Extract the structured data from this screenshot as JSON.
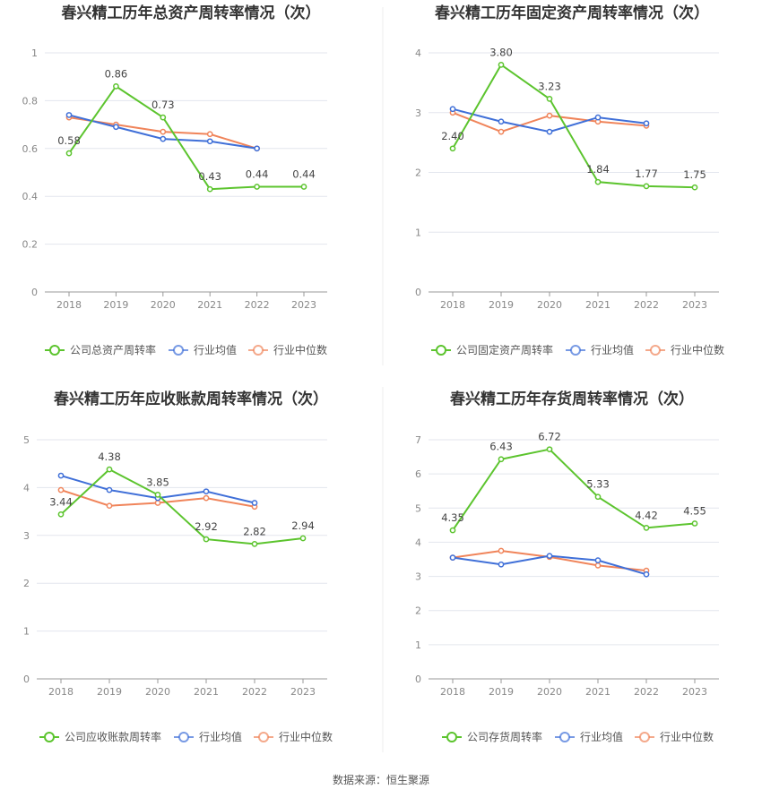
{
  "colors": {
    "company": "#5cc42e",
    "industry_avg": "#3f6fd8",
    "industry_median": "#f0845a",
    "grid": "#e3e6ee",
    "axis": "#999999"
  },
  "legend_labels": {
    "industry_avg": "行业均值",
    "industry_median": "行业中位数"
  },
  "source": "数据来源：恒生聚源",
  "chart_data": [
    {
      "type": "line",
      "title": "春兴精工历年总资产周转率情况（次）",
      "categories": [
        "2018",
        "2019",
        "2020",
        "2021",
        "2022",
        "2023"
      ],
      "ylim": [
        0,
        1
      ],
      "yticks": [
        0,
        0.2,
        0.4,
        0.6,
        0.8,
        1
      ],
      "ytick_labels": [
        "0",
        "0.2",
        "0.4",
        "0.6",
        "0.8",
        "1"
      ],
      "series": [
        {
          "name": "公司总资产周转率",
          "key": "company",
          "values": [
            0.58,
            0.86,
            0.73,
            0.43,
            0.44,
            0.44
          ],
          "labels": [
            "0.58",
            "0.86",
            "0.73",
            "0.43",
            "0.44",
            "0.44"
          ]
        },
        {
          "name": "行业均值",
          "key": "industry_avg",
          "values": [
            0.74,
            0.69,
            0.64,
            0.63,
            0.6,
            null
          ]
        },
        {
          "name": "行业中位数",
          "key": "industry_median",
          "values": [
            0.73,
            0.7,
            0.67,
            0.66,
            0.6,
            null
          ]
        }
      ]
    },
    {
      "type": "line",
      "title": "春兴精工历年固定资产周转率情况（次）",
      "categories": [
        "2018",
        "2019",
        "2020",
        "2021",
        "2022",
        "2023"
      ],
      "ylim": [
        0,
        4
      ],
      "yticks": [
        0,
        1,
        2,
        3,
        4
      ],
      "ytick_labels": [
        "0",
        "1",
        "2",
        "3",
        "4"
      ],
      "series": [
        {
          "name": "公司固定资产周转率",
          "key": "company",
          "values": [
            2.4,
            3.8,
            3.23,
            1.84,
            1.77,
            1.75
          ],
          "labels": [
            "2.40",
            "3.80",
            "3.23",
            "1.84",
            "1.77",
            "1.75"
          ]
        },
        {
          "name": "行业均值",
          "key": "industry_avg",
          "values": [
            3.06,
            2.85,
            2.68,
            2.92,
            2.82,
            null
          ]
        },
        {
          "name": "行业中位数",
          "key": "industry_median",
          "values": [
            3.0,
            2.68,
            2.95,
            2.85,
            2.78,
            null
          ]
        }
      ]
    },
    {
      "type": "line",
      "title": "春兴精工历年应收账款周转率情况（次）",
      "categories": [
        "2018",
        "2019",
        "2020",
        "2021",
        "2022",
        "2023"
      ],
      "ylim": [
        0,
        5
      ],
      "yticks": [
        0,
        1,
        2,
        3,
        4,
        5
      ],
      "ytick_labels": [
        "0",
        "1",
        "2",
        "3",
        "4",
        "5"
      ],
      "series": [
        {
          "name": "公司应收账款周转率",
          "key": "company",
          "values": [
            3.44,
            4.38,
            3.85,
            2.92,
            2.82,
            2.94
          ],
          "labels": [
            "3.44",
            "4.38",
            "3.85",
            "2.92",
            "2.82",
            "2.94"
          ]
        },
        {
          "name": "行业均值",
          "key": "industry_avg",
          "values": [
            4.25,
            3.95,
            3.78,
            3.92,
            3.68,
            null
          ]
        },
        {
          "name": "行业中位数",
          "key": "industry_median",
          "values": [
            3.95,
            3.62,
            3.68,
            3.78,
            3.6,
            null
          ]
        }
      ]
    },
    {
      "type": "line",
      "title": "春兴精工历年存货周转率情况（次）",
      "categories": [
        "2018",
        "2019",
        "2020",
        "2021",
        "2022",
        "2023"
      ],
      "ylim": [
        0,
        7
      ],
      "yticks": [
        0,
        1,
        2,
        3,
        4,
        5,
        6,
        7
      ],
      "ytick_labels": [
        "0",
        "1",
        "2",
        "3",
        "4",
        "5",
        "6",
        "7"
      ],
      "series": [
        {
          "name": "公司存货周转率",
          "key": "company",
          "values": [
            4.35,
            6.43,
            6.72,
            5.33,
            4.42,
            4.55
          ],
          "labels": [
            "4.35",
            "6.43",
            "6.72",
            "5.33",
            "4.42",
            "4.55"
          ]
        },
        {
          "name": "行业均值",
          "key": "industry_avg",
          "values": [
            3.55,
            3.35,
            3.6,
            3.47,
            3.06,
            null
          ]
        },
        {
          "name": "行业中位数",
          "key": "industry_median",
          "values": [
            3.55,
            3.75,
            3.57,
            3.32,
            3.17,
            null
          ]
        }
      ]
    }
  ]
}
